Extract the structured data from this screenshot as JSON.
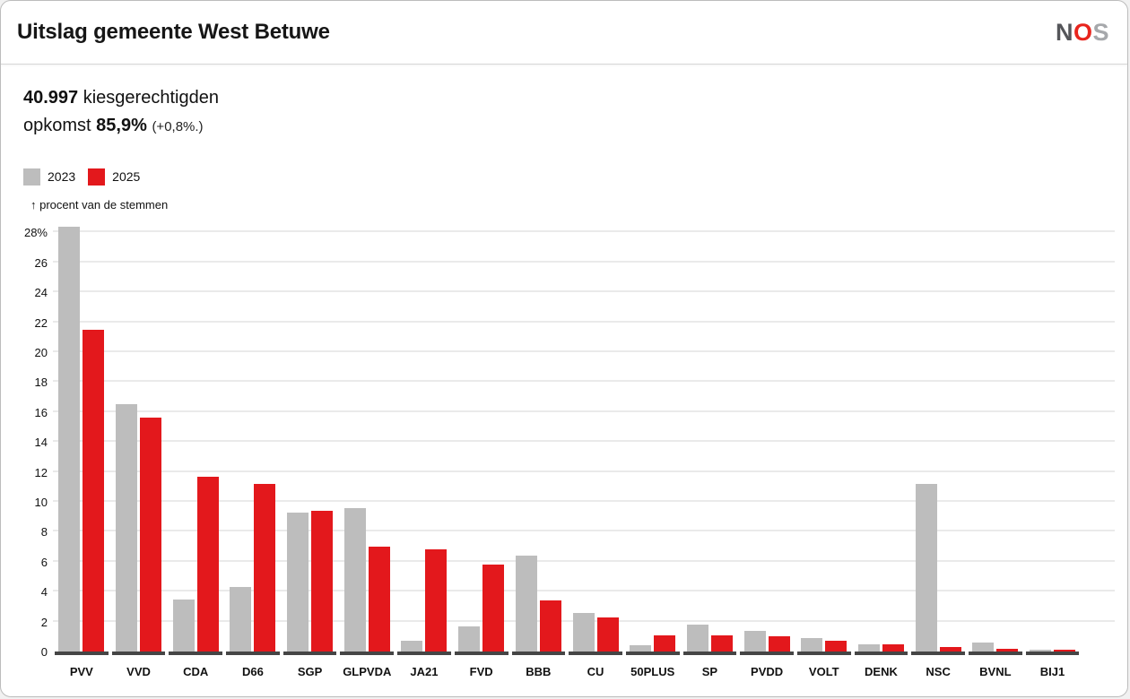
{
  "header": {
    "title": "Uitslag gemeente West Betuwe",
    "logo": {
      "n": "N",
      "o": "O",
      "s": "S",
      "colors": {
        "n": "#55565a",
        "o": "#e8251d",
        "s": "#a6a8ab"
      }
    }
  },
  "stats": {
    "electorate_value": "40.997",
    "electorate_label": "kiesgerechtigden",
    "turnout_label": "opkomst",
    "turnout_value": "85,9%",
    "turnout_change": "(+0,8%.)"
  },
  "legend": {
    "items": [
      {
        "label": "2023",
        "color": "#bdbdbd"
      },
      {
        "label": "2025",
        "color": "#e3181c"
      }
    ]
  },
  "chart_data": {
    "type": "bar",
    "title": "",
    "ylabel": "↑ procent van de stemmen",
    "xlabel": "",
    "ylim": [
      0,
      29
    ],
    "grid": true,
    "legend_position": "top-left",
    "yticks": [
      0,
      2,
      4,
      6,
      8,
      10,
      12,
      14,
      16,
      18,
      20,
      22,
      24,
      26,
      28
    ],
    "ytick_labels": [
      "0",
      "2",
      "4",
      "6",
      "8",
      "10",
      "12",
      "14",
      "16",
      "18",
      "20",
      "22",
      "24",
      "26",
      "28%"
    ],
    "categories": [
      "PVV",
      "VVD",
      "CDA",
      "D66",
      "SGP",
      "GLPVDA",
      "JA21",
      "FVD",
      "BBB",
      "CU",
      "50PLUS",
      "SP",
      "PVDD",
      "VOLT",
      "DENK",
      "NSC",
      "BVNL",
      "BIJ1"
    ],
    "series": [
      {
        "name": "2023",
        "color": "#bdbdbd",
        "values": [
          28.4,
          16.5,
          3.5,
          4.3,
          9.3,
          9.6,
          0.7,
          1.7,
          6.4,
          2.6,
          0.4,
          1.8,
          1.4,
          0.9,
          0.5,
          11.2,
          0.6,
          0.1
        ]
      },
      {
        "name": "2025",
        "color": "#e3181c",
        "values": [
          21.5,
          15.6,
          11.7,
          11.2,
          9.4,
          7.0,
          6.8,
          5.8,
          3.4,
          2.3,
          1.1,
          1.1,
          1.0,
          0.7,
          0.5,
          0.3,
          0.2,
          0.1
        ]
      }
    ]
  }
}
